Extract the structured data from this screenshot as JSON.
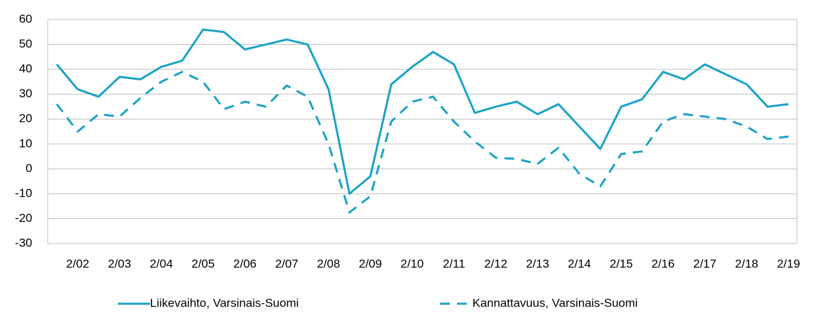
{
  "chart_data": {
    "type": "line",
    "categories": [
      null,
      "2/02",
      null,
      "2/03",
      null,
      "2/04",
      null,
      "2/05",
      null,
      "2/06",
      null,
      "2/07",
      null,
      "2/08",
      null,
      "2/09",
      null,
      "2/10",
      null,
      "2/11",
      null,
      "2/12",
      null,
      "2/13",
      null,
      "2/14",
      null,
      "2/15",
      null,
      "2/16",
      null,
      "2/17",
      null,
      "2/18",
      null,
      "2/19"
    ],
    "series": [
      {
        "name": "Liikevaihto, Varsinais-Suomi",
        "color": "#1ba3c6",
        "dash": "solid",
        "values": [
          42,
          32,
          29,
          37,
          36,
          41,
          43.5,
          56,
          55,
          48,
          50,
          52,
          50,
          32,
          -10,
          -3,
          34,
          41,
          47,
          42,
          22.5,
          25,
          27,
          22,
          26,
          17,
          8,
          25,
          28,
          39,
          36,
          42,
          38,
          34,
          25,
          26
        ]
      },
      {
        "name": "Kannattavuus, Varsinais-Suomi",
        "color": "#1ba3c6",
        "dash": "dashed",
        "values": [
          26,
          15,
          22,
          21,
          28.5,
          35,
          39,
          35,
          24,
          27,
          25,
          33.5,
          29,
          10,
          -17.5,
          -11,
          19,
          27,
          29,
          19,
          11,
          4.5,
          4,
          2,
          8.5,
          -2,
          -7,
          6,
          7,
          19,
          22,
          21,
          20,
          17,
          12,
          13
        ]
      }
    ],
    "ylim": [
      -30,
      60
    ],
    "yticks": [
      -30,
      -20,
      -10,
      0,
      10,
      20,
      30,
      40,
      50,
      60
    ],
    "grid": true,
    "legend": "bottom"
  }
}
